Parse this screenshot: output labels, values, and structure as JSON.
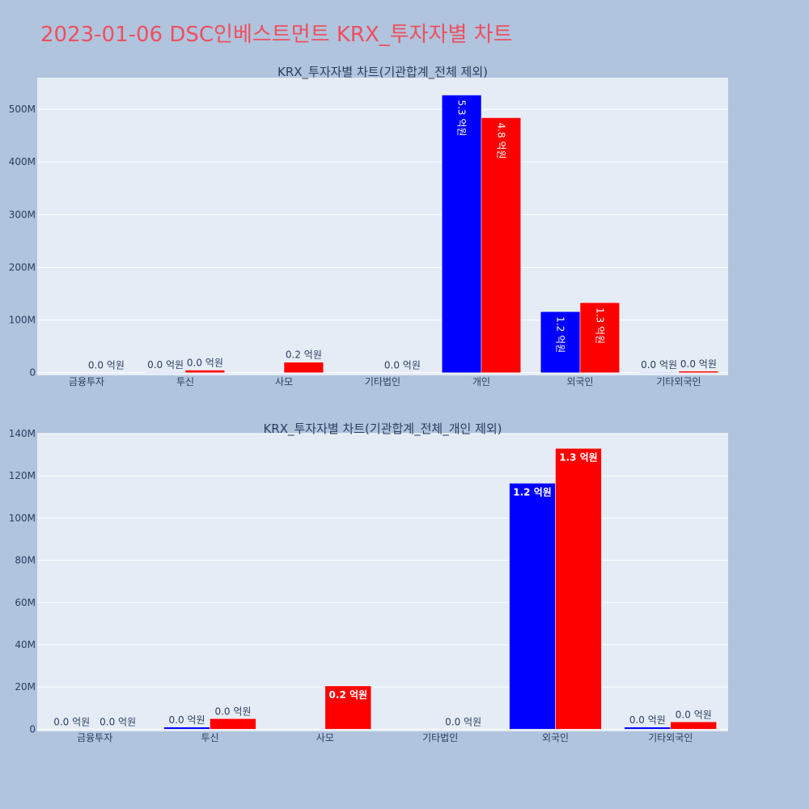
{
  "page": {
    "title": "2023-01-06 DSC인베스트먼트 KRX_투자자별 차트"
  },
  "colors": {
    "buy": "#0000ff",
    "sell": "#ff0000",
    "plot_bg": "#e5ecf6",
    "paper_bg": "#b0c4de"
  },
  "chart_data": [
    {
      "type": "bar",
      "title": "KRX_투자자별 차트(기관합계_전체 제외)",
      "categories": [
        "금융투자",
        "투신",
        "사모",
        "기타법인",
        "개인",
        "외국인",
        "기타외국인"
      ],
      "series": [
        {
          "color": "#0000ff",
          "values": [
            0,
            1000000,
            0,
            0,
            527000000,
            116000000,
            1000000
          ],
          "labels": [
            "",
            "0.0 억원",
            "",
            "",
            "5.3 억원",
            "1.2 억원",
            "0.0 억원"
          ]
        },
        {
          "color": "#ff0000",
          "values": [
            0,
            5000000,
            20000000,
            0,
            484000000,
            133000000,
            3000000
          ],
          "labels": [
            "0.0 억원",
            "0.0 억원",
            "0.2 억원",
            "0.0 억원",
            "4.8 억원",
            "1.3 억원",
            "0.0 억원"
          ]
        }
      ],
      "yticks": [
        0,
        100000000,
        200000000,
        300000000,
        400000000,
        500000000
      ],
      "ytick_labels": [
        "0",
        "100M",
        "200M",
        "300M",
        "400M",
        "500M"
      ],
      "ylim": [
        -5000000,
        560000000
      ],
      "label_style": "vertical-inside-large"
    },
    {
      "type": "bar",
      "title": "KRX_투자자별 차트(기관합계_전체_개인 제외)",
      "categories": [
        "금융투자",
        "투신",
        "사모",
        "기타법인",
        "외국인",
        "기타외국인"
      ],
      "series": [
        {
          "color": "#0000ff",
          "values": [
            0,
            1000000,
            0,
            0,
            116500000,
            1000000
          ],
          "labels": [
            "0.0 억원",
            "0.0 억원",
            "",
            "",
            "1.2 억원",
            "0.0 억원"
          ]
        },
        {
          "color": "#ff0000",
          "values": [
            0,
            5000000,
            20500000,
            0,
            133000000,
            3500000
          ],
          "labels": [
            "0.0 억원",
            "0.0 억원",
            "0.2 억원",
            "0.0 억원",
            "1.3 억원",
            "0.0 억원"
          ]
        }
      ],
      "yticks": [
        0,
        20000000,
        40000000,
        60000000,
        80000000,
        100000000,
        120000000,
        140000000
      ],
      "ytick_labels": [
        "0",
        "20M",
        "40M",
        "60M",
        "80M",
        "100M",
        "120M",
        "140M"
      ],
      "ylim": [
        -1000000,
        140000000
      ],
      "label_style": "horizontal-inside-large"
    }
  ]
}
